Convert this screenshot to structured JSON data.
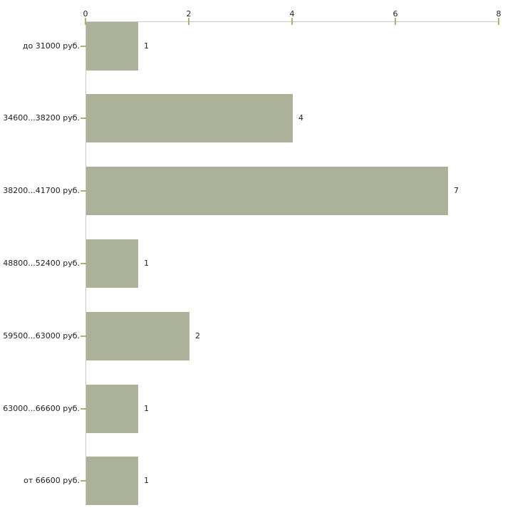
{
  "chart_data": {
    "type": "bar",
    "orientation": "horizontal",
    "title": "",
    "xlabel": "",
    "ylabel": "",
    "categories": [
      "до 31000 руб.",
      "34600...38200 руб.",
      "38200...41700 руб.",
      "48800...52400 руб.",
      "59500...63000 руб.",
      "63000...66600 руб.",
      "от 66600 руб."
    ],
    "values": [
      1,
      4,
      7,
      1,
      2,
      1,
      1
    ],
    "value_labels": [
      "1",
      "4",
      "7",
      "1",
      "2",
      "1",
      "1"
    ],
    "xlim": [
      0,
      8
    ],
    "x_ticks": [
      0,
      2,
      4,
      6,
      8
    ],
    "x_axis_position": "top",
    "grid": false,
    "legend": null,
    "colors": {
      "bar_fill": "#acb199",
      "axis_line": "#c9c9c9",
      "tick_mark": "#b2b06f",
      "text": "#222222",
      "background": "#ffffff"
    }
  }
}
